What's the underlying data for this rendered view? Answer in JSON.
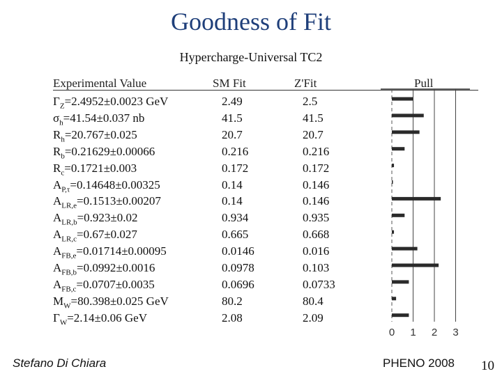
{
  "slide": {
    "title": "Goodness of Fit",
    "subtitle": "Hypercharge-Universal TC2",
    "author": "Stefano Di Chiara",
    "event": "PHENO 2008",
    "page_number": "10"
  },
  "colors": {
    "title": "#1f3f7a",
    "bars": "#2a2a2a"
  },
  "chart_data": {
    "type": "table",
    "columns": [
      "Experimental Value",
      "SM Fit",
      "Z'Fit",
      "Pull"
    ],
    "rows": [
      {
        "label": "Γ",
        "sub": "Z",
        "rest": "=2.4952±0.0023 GeV",
        "sm": "2.49",
        "zp": "2.5",
        "pull": 1.0
      },
      {
        "label": "σ",
        "sub": "h",
        "rest": "=41.54±0.037 nb",
        "sm": "41.5",
        "zp": "41.5",
        "pull": 1.5
      },
      {
        "label": "R",
        "sub": "h",
        "rest": "=20.767±0.025",
        "sm": "20.7",
        "zp": "20.7",
        "pull": 1.3
      },
      {
        "label": "R",
        "sub": "b",
        "rest": "=0.21629±0.00066",
        "sm": "0.216",
        "zp": "0.216",
        "pull": 0.6
      },
      {
        "label": "R",
        "sub": "c",
        "rest": "=0.1721±0.003",
        "sm": "0.172",
        "zp": "0.172",
        "pull": 0.1
      },
      {
        "label": "A",
        "sub": "P,τ",
        "rest": "=0.14648±0.00325",
        "sm": "0.14",
        "zp": "0.146",
        "pull": 0.05
      },
      {
        "label": "A",
        "sub": "LR,e",
        "rest": "=0.1513±0.00207",
        "sm": "0.14",
        "zp": "0.146",
        "pull": 2.3
      },
      {
        "label": "A",
        "sub": "LR,b",
        "rest": "=0.923±0.02",
        "sm": "0.934",
        "zp": "0.935",
        "pull": 0.6
      },
      {
        "label": "A",
        "sub": "LR,c",
        "rest": "=0.67±0.027",
        "sm": "0.665",
        "zp": "0.668",
        "pull": 0.1
      },
      {
        "label": "A",
        "sub": "FB,e",
        "rest": "=0.01714±0.00095",
        "sm": "0.0146",
        "zp": "0.016",
        "pull": 1.2
      },
      {
        "label": "A",
        "sub": "FB,b",
        "rest": "=0.0992±0.0016",
        "sm": "0.0978",
        "zp": "0.103",
        "pull": 2.2
      },
      {
        "label": "A",
        "sub": "FB,c",
        "rest": "=0.0707±0.0035",
        "sm": "0.0696",
        "zp": "0.0733",
        "pull": 0.8
      },
      {
        "label": "M",
        "sub": "W",
        "rest": "=80.398±0.025 GeV",
        "sm": "80.2",
        "zp": "80.4",
        "pull": 0.2
      },
      {
        "label": "Γ",
        "sub": "W",
        "rest": "=2.14±0.06 GeV",
        "sm": "2.08",
        "zp": "2.09",
        "pull": 0.8
      }
    ],
    "pull_axis": {
      "ticks": [
        "0",
        "1",
        "2",
        "3"
      ],
      "range": [
        0,
        3
      ],
      "gridlines": [
        1,
        2,
        3
      ]
    }
  }
}
